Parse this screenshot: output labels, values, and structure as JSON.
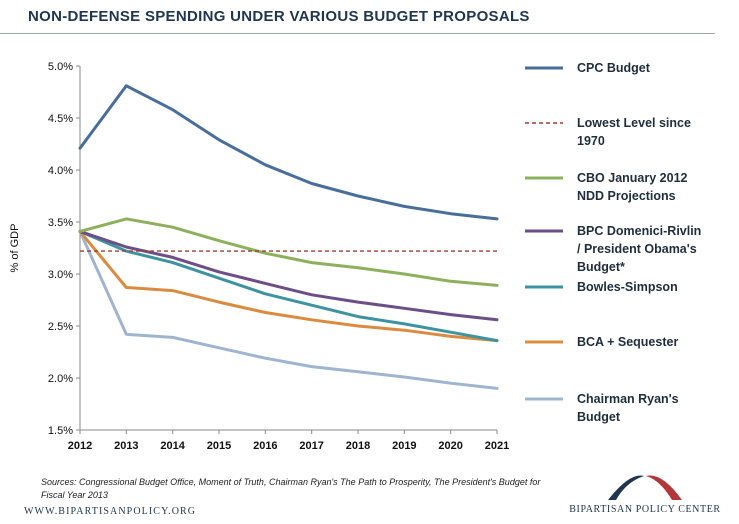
{
  "page": {
    "title": "NON-DEFENSE SPENDING UNDER VARIOUS BUDGET PROPOSALS",
    "source_note": "Sources: Congressional Budget Office, Moment of Truth, Chairman Ryan's The Path to Prosperity, The President's Budget for Fiscal Year 2013",
    "website": "WWW.BIPARTISANPOLICY.ORG",
    "logo_text": "BIPARTISAN POLICY CENTER"
  },
  "chart_data": {
    "type": "line",
    "title": "NON-DEFENSE SPENDING UNDER VARIOUS BUDGET PROPOSALS",
    "xlabel": "",
    "ylabel": "% of GDP",
    "x": [
      2012,
      2013,
      2014,
      2015,
      2016,
      2017,
      2018,
      2019,
      2020,
      2021
    ],
    "ylim": [
      1.5,
      5.0
    ],
    "yticks": [
      1.5,
      2.0,
      2.5,
      3.0,
      3.5,
      4.0,
      4.5,
      5.0
    ],
    "ytick_labels": [
      "1.5%",
      "2.0%",
      "2.5%",
      "3.0%",
      "3.5%",
      "4.0%",
      "4.5%",
      "5.0%"
    ],
    "grid": false,
    "legend_position": "right",
    "series": [
      {
        "name": "CPC Budget",
        "legend_lines": [
          "CPC Budget"
        ],
        "color": "#4a6e9b",
        "style": "solid",
        "values": [
          4.21,
          4.81,
          4.58,
          4.29,
          4.05,
          3.87,
          3.75,
          3.65,
          3.58,
          3.53
        ]
      },
      {
        "name": "Lowest Level since 1970",
        "legend_lines": [
          "Lowest Level since",
          "1970"
        ],
        "color": "#a33a30",
        "style": "dashed",
        "values": [
          3.22,
          3.22,
          3.22,
          3.22,
          3.22,
          3.22,
          3.22,
          3.22,
          3.22,
          3.22
        ]
      },
      {
        "name": "CBO January 2012 NDD Projections",
        "legend_lines": [
          "CBO January 2012",
          "NDD Projections"
        ],
        "color": "#8db05c",
        "style": "solid",
        "values": [
          3.41,
          3.53,
          3.45,
          3.32,
          3.2,
          3.11,
          3.06,
          3.0,
          2.93,
          2.89
        ]
      },
      {
        "name": "BPC Domenici-Rivlin / President Obama's Budget*",
        "legend_lines": [
          "BPC Domenici-Rivlin",
          "/ President Obama's",
          "Budget*"
        ],
        "color": "#6b4f86",
        "style": "solid",
        "values": [
          3.41,
          3.26,
          3.16,
          3.02,
          2.91,
          2.8,
          2.73,
          2.67,
          2.61,
          2.56
        ]
      },
      {
        "name": "Bowles-Simpson",
        "legend_lines": [
          "Bowles-Simpson"
        ],
        "color": "#3e93a0",
        "style": "solid",
        "values": [
          3.41,
          3.22,
          3.11,
          2.96,
          2.81,
          2.7,
          2.59,
          2.52,
          2.44,
          2.36
        ]
      },
      {
        "name": "BCA + Sequester",
        "legend_lines": [
          "BCA + Sequester"
        ],
        "color": "#db8b3f",
        "style": "solid",
        "values": [
          3.41,
          2.87,
          2.84,
          2.73,
          2.63,
          2.56,
          2.5,
          2.46,
          2.4,
          2.36
        ]
      },
      {
        "name": "Chairman Ryan's Budget",
        "legend_lines": [
          "Chairman Ryan's",
          "Budget"
        ],
        "color": "#9fb4ce",
        "style": "solid",
        "values": [
          3.41,
          2.42,
          2.39,
          2.29,
          2.19,
          2.11,
          2.06,
          2.01,
          1.95,
          1.9
        ]
      }
    ]
  }
}
